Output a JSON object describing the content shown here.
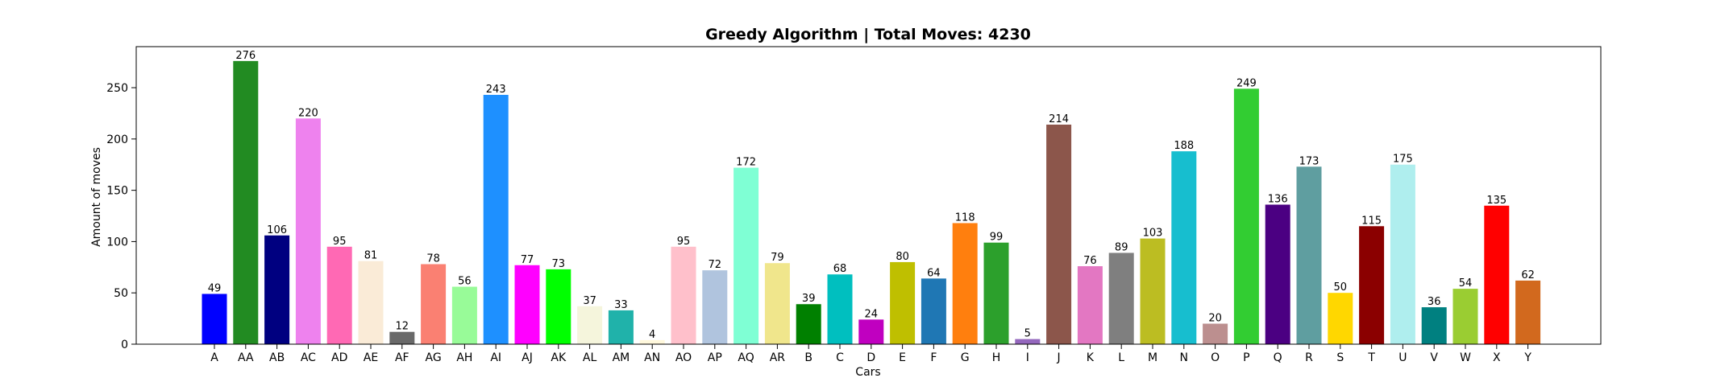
{
  "chart_data": {
    "type": "bar",
    "title": "Greedy Algorithm | Total Moves: 4230",
    "xlabel": "Cars",
    "ylabel": "Amount of moves",
    "ylim": [
      0,
      290
    ],
    "yticks": [
      0,
      50,
      100,
      150,
      200,
      250
    ],
    "grid": false,
    "categories": [
      "A",
      "AA",
      "AB",
      "AC",
      "AD",
      "AE",
      "AF",
      "AG",
      "AH",
      "AI",
      "AJ",
      "AK",
      "AL",
      "AM",
      "AN",
      "AO",
      "AP",
      "AQ",
      "AR",
      "B",
      "C",
      "D",
      "E",
      "F",
      "G",
      "H",
      "I",
      "J",
      "K",
      "L",
      "M",
      "N",
      "O",
      "P",
      "Q",
      "R",
      "S",
      "T",
      "U",
      "V",
      "W",
      "X",
      "Y"
    ],
    "values": [
      49,
      276,
      106,
      220,
      95,
      81,
      12,
      78,
      56,
      243,
      77,
      73,
      37,
      33,
      4,
      95,
      72,
      172,
      79,
      39,
      68,
      24,
      80,
      64,
      118,
      99,
      5,
      214,
      76,
      89,
      103,
      188,
      20,
      249,
      136,
      173,
      50,
      115,
      175,
      36,
      54,
      135,
      62
    ],
    "colors": [
      "#0000ff",
      "#228b22",
      "#000080",
      "#ee82ee",
      "#ff69b4",
      "#faebd7",
      "#696969",
      "#fa8072",
      "#98fb98",
      "#1e90ff",
      "#ff00ff",
      "#00ff00",
      "#f5f5dc",
      "#20b2aa",
      "#fff8dc",
      "#ffc0cb",
      "#b0c4de",
      "#7fffd4",
      "#f0e68c",
      "#008000",
      "#00bfbf",
      "#c000c0",
      "#bfbf00",
      "#1f77b4",
      "#ff7f0e",
      "#2ca02c",
      "#9467bd",
      "#8c564b",
      "#e377c2",
      "#7f7f7f",
      "#bcbd22",
      "#17becf",
      "#bc8f8f",
      "#32cd32",
      "#4b0082",
      "#5f9ea0",
      "#ffd700",
      "#8b0000",
      "#afeeee",
      "#008080",
      "#9acd32",
      "#ff0000",
      "#d2691e"
    ]
  }
}
